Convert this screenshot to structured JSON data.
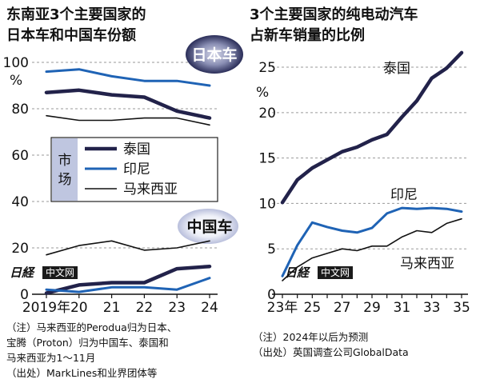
{
  "chart_data": [
    {
      "type": "line",
      "title": [
        "东南亚3个主要国家的",
        "日本车和中国车份额"
      ],
      "ylabel": "%",
      "categories": [
        "2019年",
        "20",
        "21",
        "22",
        "23",
        "24"
      ],
      "x": [
        2019,
        2020,
        2021,
        2022,
        2023,
        2024
      ],
      "ylim": [
        0,
        100
      ],
      "yticks": [
        0,
        20,
        40,
        60,
        80,
        100
      ],
      "groups": [
        {
          "label": "日本车",
          "series": [
            {
              "name": "泰国",
              "color": "#22224a",
              "style": "thick",
              "values": [
                87,
                88,
                86,
                85,
                79,
                76
              ]
            },
            {
              "name": "印尼",
              "color": "#1f63b5",
              "style": "medium",
              "values": [
                96,
                97,
                94,
                92,
                92,
                90
              ]
            },
            {
              "name": "马来西亚",
              "color": "#111111",
              "style": "thin",
              "values": [
                77,
                75,
                75,
                76,
                76,
                73
              ]
            }
          ]
        },
        {
          "label": "中国车",
          "series": [
            {
              "name": "泰国",
              "color": "#22224a",
              "style": "thick",
              "values": [
                0.5,
                4,
                5,
                5,
                11,
                12
              ]
            },
            {
              "name": "印尼",
              "color": "#1f63b5",
              "style": "medium",
              "values": [
                2,
                1,
                3,
                3,
                2,
                7
              ]
            },
            {
              "name": "马来西亚",
              "color": "#111111",
              "style": "thin",
              "values": [
                17,
                21,
                23,
                19,
                20,
                23
              ]
            }
          ]
        }
      ],
      "legend": {
        "title": "市场",
        "placement": "center-left",
        "entries": [
          "泰国",
          "印尼",
          "马来西亚"
        ]
      },
      "notes": [
        "（注）马来西亚的Perodua归为日本、",
        "宝腾（Proton）归为中国车、泰国和",
        "马来西亚为1～11月",
        "（出处）MarkLines和业界团体等"
      ]
    },
    {
      "type": "line",
      "title": [
        "3个主要国家的纯电动汽车",
        "占新车销量的比例"
      ],
      "ylabel": "%",
      "categories": [
        "23年",
        "25",
        "27",
        "29",
        "31",
        "33",
        "35"
      ],
      "x": [
        2023,
        2024,
        2025,
        2026,
        2027,
        2028,
        2029,
        2030,
        2031,
        2032,
        2033,
        2034,
        2035
      ],
      "ylim": [
        0,
        26.5
      ],
      "yticks": [
        0,
        5,
        10,
        15,
        20,
        25
      ],
      "series": [
        {
          "name": "泰国",
          "color": "#22224a",
          "style": "thick",
          "values": [
            10.1,
            12.6,
            13.9,
            14.8,
            15.7,
            16.2,
            17.0,
            17.6,
            19.5,
            21.3,
            23.8,
            24.9,
            26.6
          ]
        },
        {
          "name": "印尼",
          "color": "#1f63b5",
          "style": "medium",
          "values": [
            2.0,
            5.4,
            7.9,
            7.4,
            7.0,
            6.8,
            7.3,
            8.9,
            9.5,
            9.4,
            9.5,
            9.4,
            9.1
          ]
        },
        {
          "name": "马来西亚",
          "color": "#111111",
          "style": "thin",
          "values": [
            1.5,
            3.0,
            4.0,
            4.5,
            5.0,
            4.8,
            5.3,
            5.3,
            6.3,
            7.0,
            6.8,
            7.8,
            8.3
          ]
        }
      ],
      "notes": [
        "（注）2024年以后为预测",
        "（出处）英国调查公司GlobalData"
      ]
    }
  ],
  "watermark": {
    "logo": "日経",
    "text": "中文网"
  }
}
